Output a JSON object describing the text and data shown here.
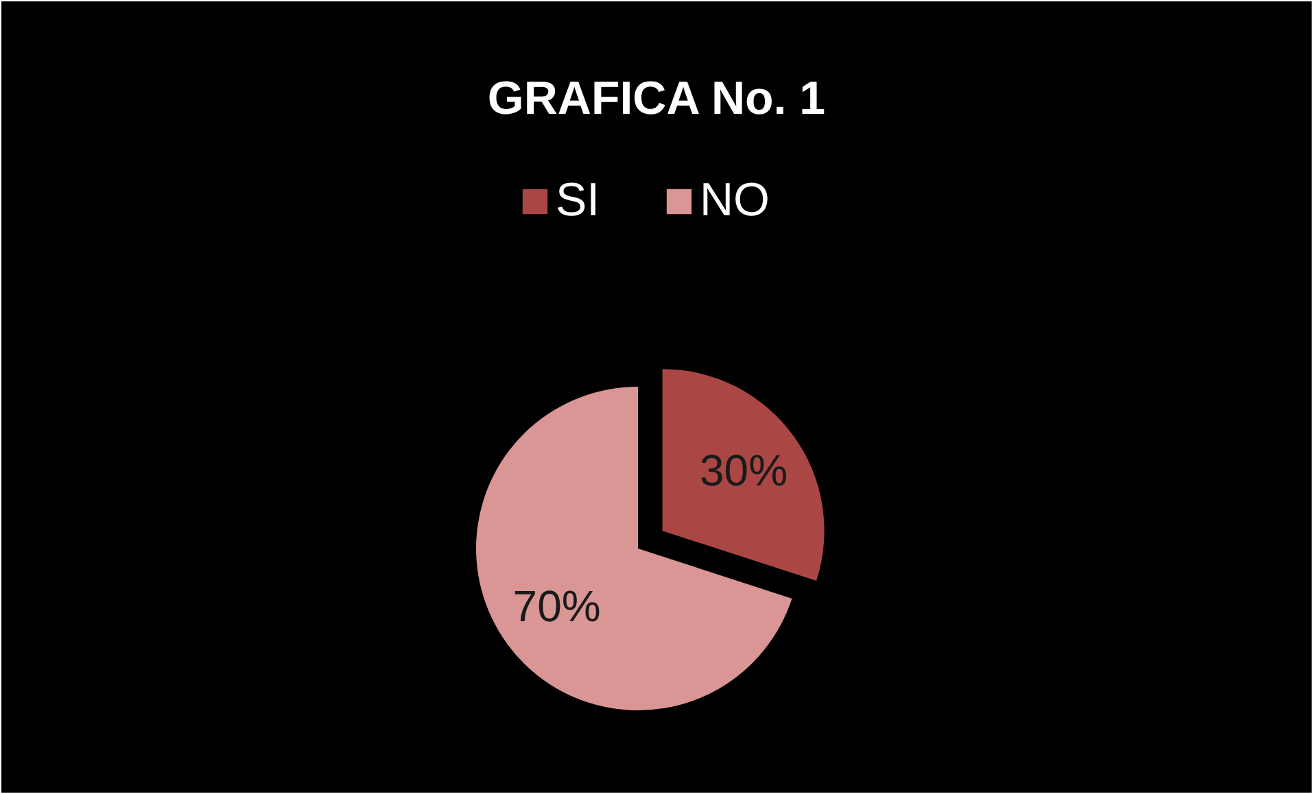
{
  "chart_data": {
    "type": "pie",
    "title": "GRAFICA No. 1",
    "categories": [
      "SI",
      "NO"
    ],
    "values": [
      30,
      70
    ],
    "colors": [
      "#aa4744",
      "#d99694"
    ],
    "value_labels": [
      "30%",
      "70%"
    ],
    "legend": "top"
  }
}
